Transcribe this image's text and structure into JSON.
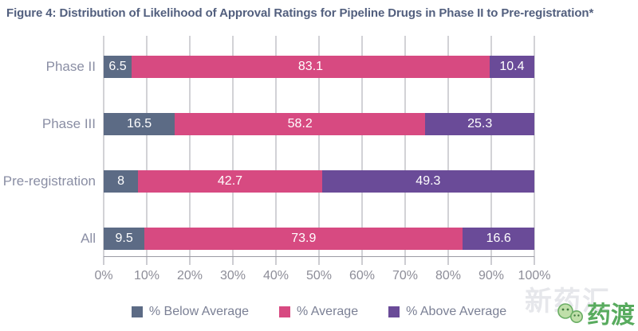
{
  "figure": {
    "title": "Figure 4: Distribution of Likelihood of Approval Ratings for Pipeline Drugs in Phase II to Pre-registration*"
  },
  "chart_data": {
    "type": "bar",
    "orientation": "horizontal",
    "stacked": true,
    "unit": "%",
    "categories": [
      "Phase II",
      "Phase III",
      "Pre-registration",
      "All"
    ],
    "series": [
      {
        "name": "% Below Average",
        "color": "#5c6b85",
        "values": [
          6.5,
          16.5,
          8,
          9.5
        ]
      },
      {
        "name": "% Average",
        "color": "#d74a81",
        "values": [
          83.1,
          58.2,
          42.7,
          73.9
        ]
      },
      {
        "name": "% Above Average",
        "color": "#6a4b98",
        "values": [
          10.4,
          25.3,
          49.3,
          16.6
        ]
      }
    ],
    "xlim": [
      0,
      100
    ],
    "x_tick_labels": [
      "0%",
      "10%",
      "20%",
      "30%",
      "40%",
      "50%",
      "60%",
      "70%",
      "80%",
      "90%",
      "100%"
    ],
    "grid": true,
    "legend_position": "bottom",
    "bar_value_labels": true
  },
  "watermark": {
    "background_text": "新药汇",
    "logo_text": "药渡",
    "logo_color": "#58ab5e"
  },
  "colors": {
    "title": "#525f7e",
    "category_label": "#8a8ea4",
    "axis": "#9b9ba4",
    "tick_label": "#8d8d98",
    "legend_text": "#7b8095",
    "gridline": "#a5a6ae"
  }
}
